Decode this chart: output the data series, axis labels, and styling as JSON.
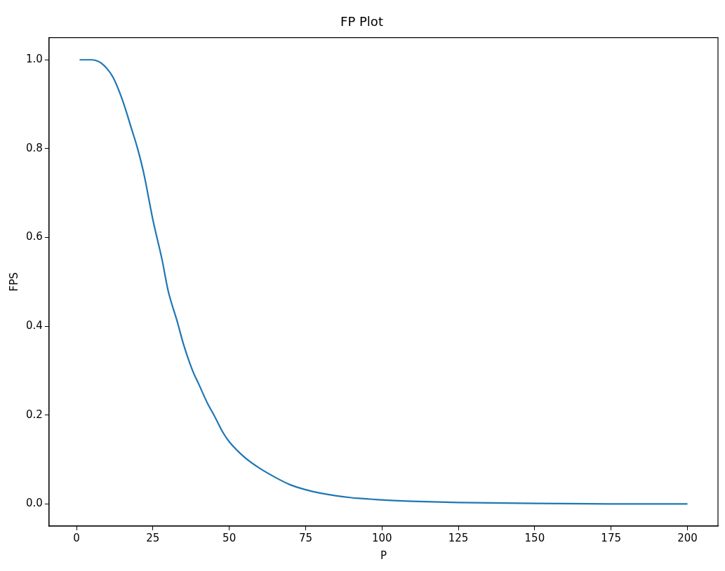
{
  "chart_data": {
    "type": "line",
    "title": "FP Plot",
    "xlabel": "P",
    "ylabel": "FPS",
    "series": [
      {
        "color": "#1f77b4",
        "x": [
          1,
          3,
          5,
          7,
          8,
          10,
          12,
          15,
          18,
          20,
          22,
          25,
          28,
          30,
          33,
          35,
          38,
          40,
          43,
          45,
          48,
          50,
          55,
          60,
          65,
          70,
          75,
          80,
          90,
          100,
          110,
          125,
          150,
          175,
          200
        ],
        "values": [
          1.0,
          1.0,
          1.0,
          0.997,
          0.993,
          0.98,
          0.96,
          0.91,
          0.845,
          0.8,
          0.745,
          0.64,
          0.55,
          0.48,
          0.41,
          0.36,
          0.3,
          0.27,
          0.225,
          0.2,
          0.16,
          0.14,
          0.105,
          0.08,
          0.06,
          0.043,
          0.032,
          0.024,
          0.014,
          0.009,
          0.006,
          0.003,
          0.001,
          0.0,
          0.0
        ]
      }
    ],
    "xlim": [
      -9,
      210
    ],
    "xticks": [
      0,
      25,
      50,
      75,
      100,
      125,
      150,
      175,
      200
    ],
    "ylim": [
      -0.05,
      1.05
    ],
    "yticks": [
      {
        "value": 0,
        "label": "0.0"
      },
      {
        "value": 0.2,
        "label": "0.2"
      },
      {
        "value": 0.4,
        "label": "0.4"
      },
      {
        "value": 0.6,
        "label": "0.6"
      },
      {
        "value": 0.8,
        "label": "0.8"
      },
      {
        "value": 1,
        "label": "1.0"
      }
    ],
    "grid": false,
    "legend": false,
    "marker": "none",
    "line_style": "solid"
  }
}
